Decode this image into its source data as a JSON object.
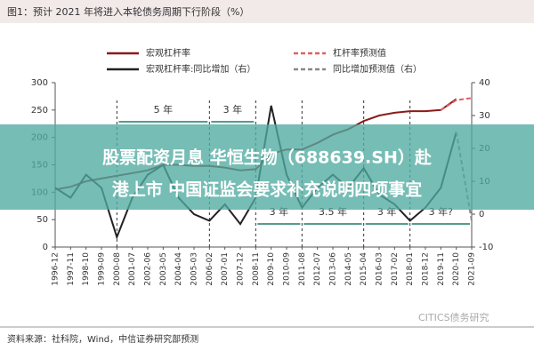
{
  "chart_data": {
    "type": "line",
    "title": "图1：预计 2021 年将进入本轮债务周期下行阶段（%）",
    "categories": [
      "1996-12",
      "1997-11",
      "1998-10",
      "1999-09",
      "2000-08",
      "2001-07",
      "2002-06",
      "2003-05",
      "2004-04",
      "2005-03",
      "2006-02",
      "2007-01",
      "2007-12",
      "2008-11",
      "2009-10",
      "2010-09",
      "2011-08",
      "2012-07",
      "2013-06",
      "2014-05",
      "2015-04",
      "2016-03",
      "2017-02",
      "2018-01",
      "2018-12",
      "2019-11",
      "2020-10",
      "2021-09"
    ],
    "series": [
      {
        "name": "宏观杠杆率",
        "color": "#8b1a1a",
        "dashed": false,
        "axis": "y",
        "values": [
          105,
          110,
          120,
          125,
          130,
          135,
          140,
          150,
          150,
          148,
          148,
          145,
          140,
          142,
          170,
          178,
          178,
          190,
          205,
          215,
          230,
          240,
          245,
          248,
          248,
          250,
          270,
          null
        ]
      },
      {
        "name": "杠杆率预测值",
        "color": "#e06060",
        "dashed": true,
        "axis": "y",
        "values": [
          null,
          null,
          null,
          null,
          null,
          null,
          null,
          null,
          null,
          null,
          null,
          null,
          null,
          null,
          null,
          null,
          null,
          null,
          null,
          null,
          null,
          null,
          null,
          null,
          null,
          250,
          268,
          272
        ]
      },
      {
        "name": "宏观杠杆率:同比增加（右）",
        "color": "#222222",
        "dashed": false,
        "axis": "y2",
        "values": [
          8,
          5,
          12,
          8,
          -7,
          5,
          12,
          15,
          5,
          0,
          -2,
          3,
          -3,
          5,
          33,
          12,
          2,
          8,
          12,
          8,
          14,
          6,
          3,
          -2,
          2,
          8,
          25,
          null
        ]
      },
      {
        "name": "同比增加预测值（右）",
        "color": "#888888",
        "dashed": true,
        "axis": "y2",
        "values": [
          null,
          null,
          null,
          null,
          null,
          null,
          null,
          null,
          null,
          null,
          null,
          null,
          null,
          null,
          null,
          null,
          null,
          null,
          null,
          null,
          null,
          null,
          null,
          null,
          null,
          null,
          25,
          -2
        ]
      }
    ],
    "ylim": [
      0,
      300
    ],
    "yticks": [
      0,
      50,
      100,
      150,
      200,
      250,
      300
    ],
    "y2lim": [
      -10,
      40
    ],
    "y2ticks": [
      -10,
      0,
      10,
      20,
      30,
      40
    ],
    "annotations": [
      "5 年",
      "3 年",
      "3 年",
      "3.5 年",
      "3 年",
      "3 年?"
    ],
    "source": "资料来源：社科院，Wind，中信证券研究部预测",
    "watermark": "CITICS债务研究",
    "overlay_text": [
      "股票配资月息  华恒生物（688639.SH）赴",
      "港上市 中国证监会要求补充说明四项事宜"
    ]
  }
}
